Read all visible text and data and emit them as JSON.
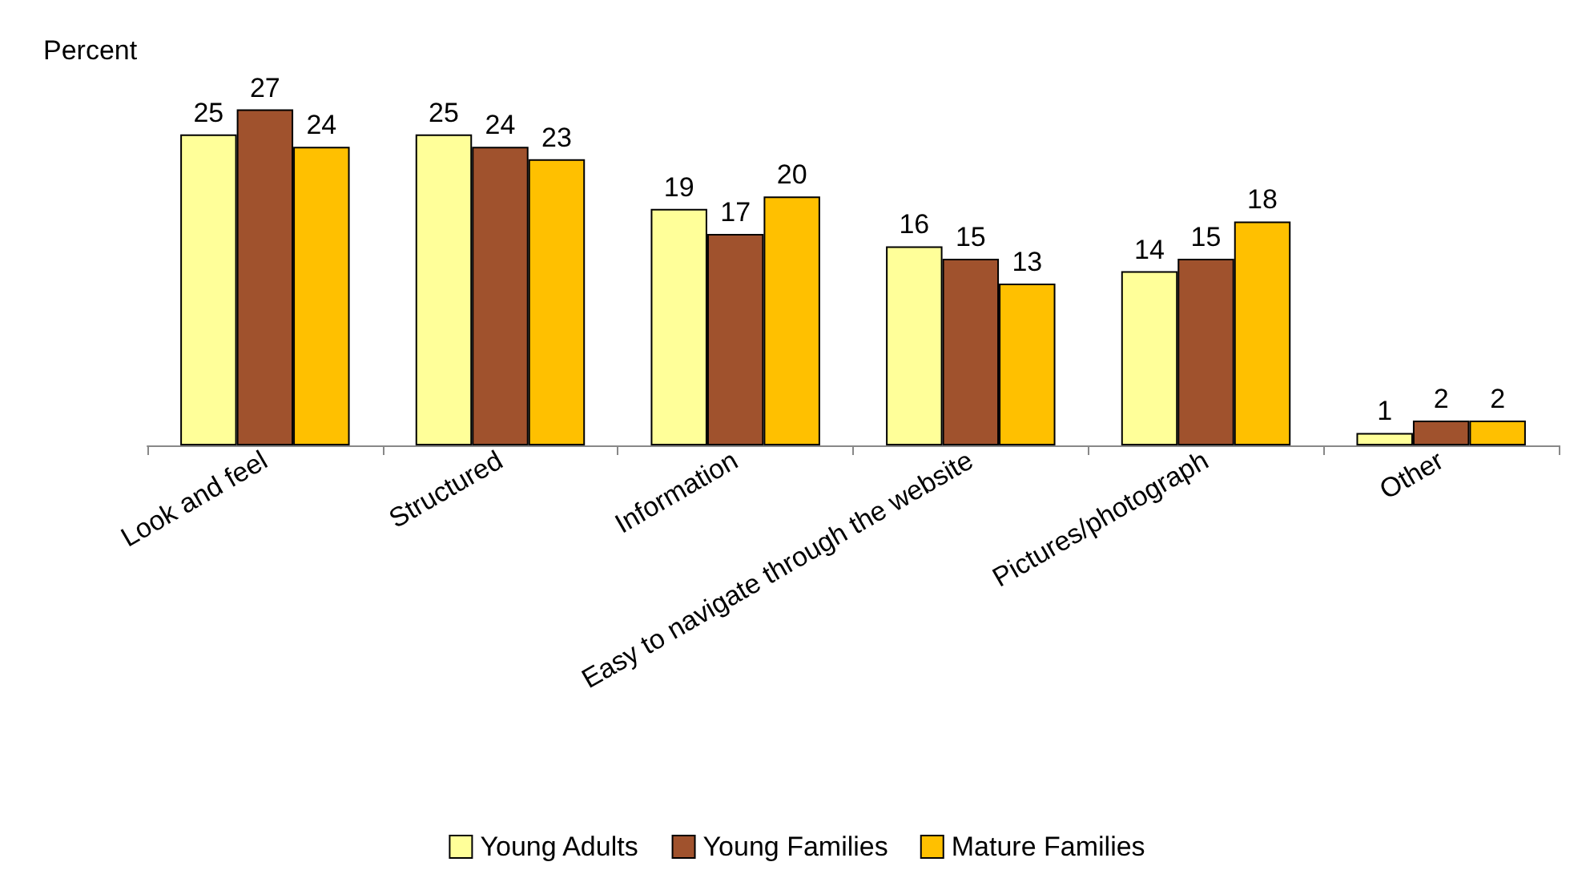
{
  "chart_data": {
    "type": "bar",
    "ylabel": "Percent",
    "categories": [
      "Look and feel",
      "Structured",
      "Information",
      "Easy to navigate through the website",
      "Pictures/photograph",
      "Other"
    ],
    "series": [
      {
        "name": "Young Adults",
        "color": "#ffff99",
        "values": [
          25,
          25,
          19,
          16,
          14,
          1
        ]
      },
      {
        "name": "Young Families",
        "color": "#a0522d",
        "values": [
          27,
          24,
          17,
          15,
          15,
          2
        ]
      },
      {
        "name": "Mature Families",
        "color": "#ffc000",
        "values": [
          24,
          23,
          20,
          13,
          18,
          2
        ]
      }
    ],
    "data_labels": true,
    "legend": "bottom"
  }
}
